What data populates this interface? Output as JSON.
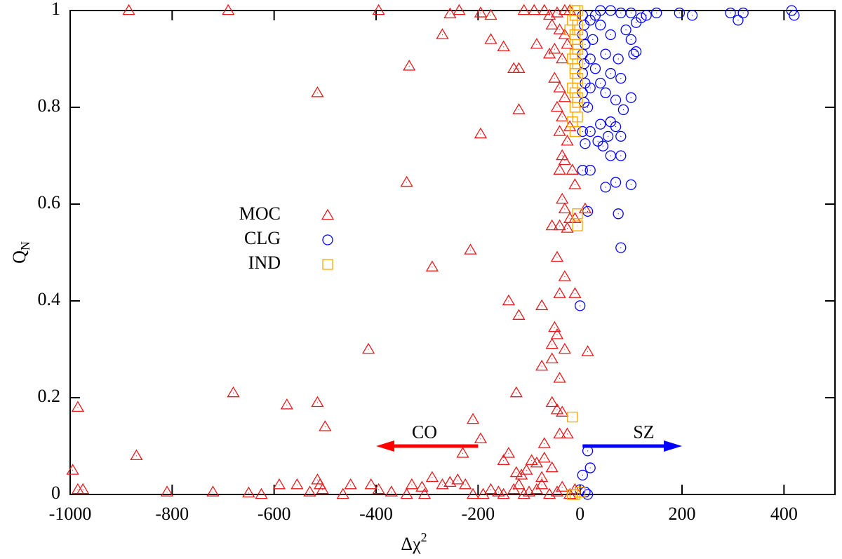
{
  "chart_data": {
    "type": "scatter",
    "xlabel": {
      "base": "Δχ",
      "sup": "2"
    },
    "ylabel": {
      "base": "Q",
      "sub": "N"
    },
    "xlim": [
      -1000,
      500
    ],
    "ylim": [
      0,
      1
    ],
    "xticks": [
      -1000,
      -800,
      -600,
      -400,
      -200,
      0,
      200,
      400
    ],
    "yticks": [
      0,
      0.2,
      0.4,
      0.6,
      0.8,
      1
    ],
    "legend": "left",
    "series": [
      {
        "name": "MOC",
        "color": "#e41a1c",
        "marker": "triangle",
        "x": [
          -885,
          -690,
          -395,
          -237,
          -255,
          -195,
          -175,
          -110,
          -90,
          -70,
          -60,
          -45,
          -30,
          -20,
          -270,
          -175,
          -150,
          -85,
          -55,
          -40,
          -30,
          -335,
          -130,
          -120,
          -60,
          -50,
          -35,
          -25,
          -515,
          -120,
          -195,
          -50,
          -40,
          -30,
          -45,
          -35,
          -20,
          -40,
          -25,
          -35,
          -30,
          -15,
          -40,
          -340,
          -10,
          -35,
          -30,
          -20,
          -10,
          -40,
          -25,
          -55,
          10,
          -215,
          -45,
          -290,
          -30,
          -40,
          -10,
          -140,
          -75,
          -120,
          -50,
          -45,
          -55,
          -30,
          -415,
          15,
          -55,
          -75,
          -40,
          -680,
          -125,
          -985,
          -575,
          -515,
          -55,
          -45,
          -35,
          -210,
          -500,
          -40,
          -25,
          -195,
          -70,
          -870,
          -230,
          -140,
          -150,
          -95,
          -85,
          -70,
          -55,
          -995,
          -105,
          -115,
          -125,
          -75,
          -985,
          -975,
          -810,
          -720,
          -650,
          -625,
          -590,
          -555,
          -530,
          -515,
          -510,
          -505,
          -465,
          -450,
          -410,
          -395,
          -370,
          -340,
          -330,
          -310,
          -305,
          -290,
          -270,
          -255,
          -240,
          -225,
          -210,
          -190,
          -175,
          -160,
          -150,
          -130,
          -120,
          -110,
          -100,
          -85,
          -75,
          -60,
          -45,
          -35,
          -20,
          -10
        ],
        "values": [
          1,
          1,
          1,
          1,
          0.993,
          0.995,
          0.99,
          1,
          1,
          1,
          0.99,
          0.995,
          1,
          1,
          0.95,
          0.94,
          0.925,
          0.93,
          0.97,
          0.96,
          0.95,
          0.885,
          0.88,
          0.88,
          0.91,
          0.92,
          0.9,
          0.93,
          0.83,
          0.795,
          0.745,
          0.86,
          0.84,
          0.82,
          0.8,
          0.78,
          0.76,
          0.75,
          0.73,
          0.7,
          0.69,
          0.67,
          0.67,
          0.645,
          0.64,
          0.61,
          0.59,
          0.57,
          0.57,
          0.555,
          0.55,
          0.555,
          0.59,
          0.505,
          0.49,
          0.47,
          0.45,
          0.415,
          0.415,
          0.4,
          0.39,
          0.37,
          0.345,
          0.33,
          0.31,
          0.3,
          0.3,
          0.295,
          0.28,
          0.265,
          0.24,
          0.21,
          0.21,
          0.18,
          0.185,
          0.19,
          0.19,
          0.175,
          0.17,
          0.155,
          0.14,
          0.125,
          0.125,
          0.115,
          0.105,
          0.08,
          0.085,
          0.085,
          0.07,
          0.07,
          0.065,
          0.075,
          0.055,
          0.05,
          0.05,
          0.04,
          0.045,
          0.035,
          0.01,
          0.01,
          0.005,
          0.005,
          0.003,
          0,
          0.02,
          0.02,
          0.005,
          0.03,
          0.02,
          0.01,
          0,
          0.02,
          0.02,
          0.01,
          0.005,
          0,
          0.02,
          0.015,
          0,
          0.035,
          0.02,
          0.025,
          0.03,
          0.02,
          0,
          0,
          0.01,
          0.005,
          0,
          0.01,
          0.02,
          0,
          0.005,
          0.01,
          0.02,
          0,
          0.005,
          0.015,
          0,
          0.01
        ]
      },
      {
        "name": "CLG",
        "color": "#0000ff",
        "marker": "circle",
        "x": [
          415,
          420,
          310,
          320,
          295,
          220,
          195,
          150,
          130,
          120,
          100,
          80,
          60,
          40,
          30,
          20,
          110,
          90,
          60,
          40,
          25,
          100,
          110,
          105,
          75,
          50,
          20,
          30,
          60,
          80,
          40,
          20,
          100,
          70,
          50,
          15,
          85,
          60,
          70,
          40,
          20,
          5,
          35,
          80,
          55,
          10,
          45,
          60,
          80,
          20,
          5,
          100,
          70,
          50,
          75,
          15,
          80,
          0,
          15,
          20,
          5,
          10,
          15,
          0,
          5,
          8,
          5,
          10,
          5,
          8,
          5,
          10,
          5,
          8
        ],
        "values": [
          1,
          0.99,
          0.98,
          0.995,
          0.995,
          0.99,
          0.995,
          0.995,
          0.99,
          0.985,
          0.995,
          0.995,
          1,
          1,
          0.99,
          0.98,
          0.975,
          0.96,
          0.95,
          0.97,
          0.94,
          0.94,
          0.915,
          0.91,
          0.9,
          0.91,
          0.9,
          0.88,
          0.87,
          0.86,
          0.85,
          0.84,
          0.82,
          0.815,
          0.83,
          0.8,
          0.795,
          0.77,
          0.76,
          0.765,
          0.75,
          0.75,
          0.73,
          0.74,
          0.74,
          0.725,
          0.72,
          0.7,
          0.7,
          0.67,
          0.67,
          0.64,
          0.645,
          0.635,
          0.58,
          0.585,
          0.51,
          0.39,
          0.09,
          0.055,
          0.04,
          0.005,
          0,
          0.01,
          0.99,
          0.97,
          0.95,
          0.93,
          0.91,
          0.89,
          0.87,
          0.85,
          0.83,
          0.81
        ]
      },
      {
        "name": "IND",
        "color": "#ffa500",
        "marker": "square",
        "x": [
          -10,
          -15,
          -5,
          -20,
          -10,
          -5,
          -15,
          -10,
          -5,
          -15,
          -5,
          -10,
          -5,
          -15,
          -10,
          -5,
          -5,
          -15,
          -15,
          0,
          -10,
          -5,
          -10,
          -5,
          -10,
          -5,
          -10,
          -5,
          -10,
          -5,
          -10,
          -5
        ],
        "values": [
          1,
          0.98,
          0.96,
          0.96,
          0.94,
          0.92,
          0.9,
          0.88,
          0.86,
          0.84,
          0.82,
          0.8,
          0.78,
          0.77,
          0.75,
          0.58,
          0.555,
          0.16,
          0,
          0.005,
          0,
          1,
          0.99,
          0.97,
          0.95,
          0.93,
          0.91,
          0.89,
          0.87,
          0.85,
          0.83,
          0.81
        ]
      }
    ],
    "annotations": [
      {
        "text": "CO",
        "color": "#ff0000",
        "x": -305,
        "y": 0.125,
        "arrow": [
          -200,
          0.1,
          -400,
          0.1
        ]
      },
      {
        "text": "SZ",
        "color": "#0000ff",
        "x": 125,
        "y": 0.125,
        "arrow": [
          5,
          0.1,
          200,
          0.1
        ]
      }
    ]
  }
}
